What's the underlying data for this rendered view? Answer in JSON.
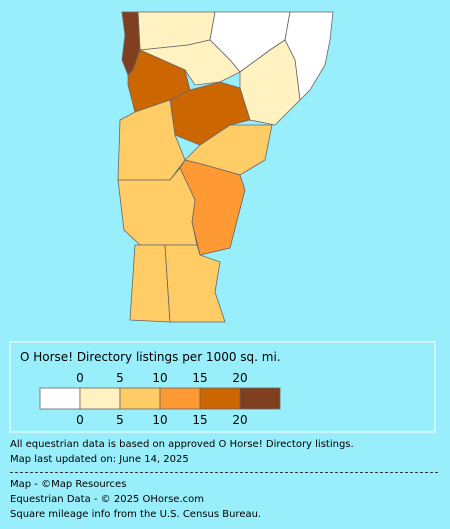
{
  "legend": {
    "title": "O Horse! Directory listings per 1000 sq. mi.",
    "top_labels": [
      "0",
      "5",
      "10",
      "15",
      "20"
    ],
    "bottom_labels": [
      "0",
      "5",
      "10",
      "15",
      "20"
    ],
    "colors": [
      "#ffffff",
      "#fff2c0",
      "#ffcc66",
      "#ff9933",
      "#cc6600",
      "#804020"
    ]
  },
  "notes": [
    "All equestrian data is based on approved O Horse! Directory listings.",
    "Map last updated on: June 14, 2025"
  ],
  "credits": [
    "Map - ©Map Resources",
    "Equestrian Data - © 2025 OHorse.com",
    "Square mileage info from the U.S. Census Bureau."
  ]
}
